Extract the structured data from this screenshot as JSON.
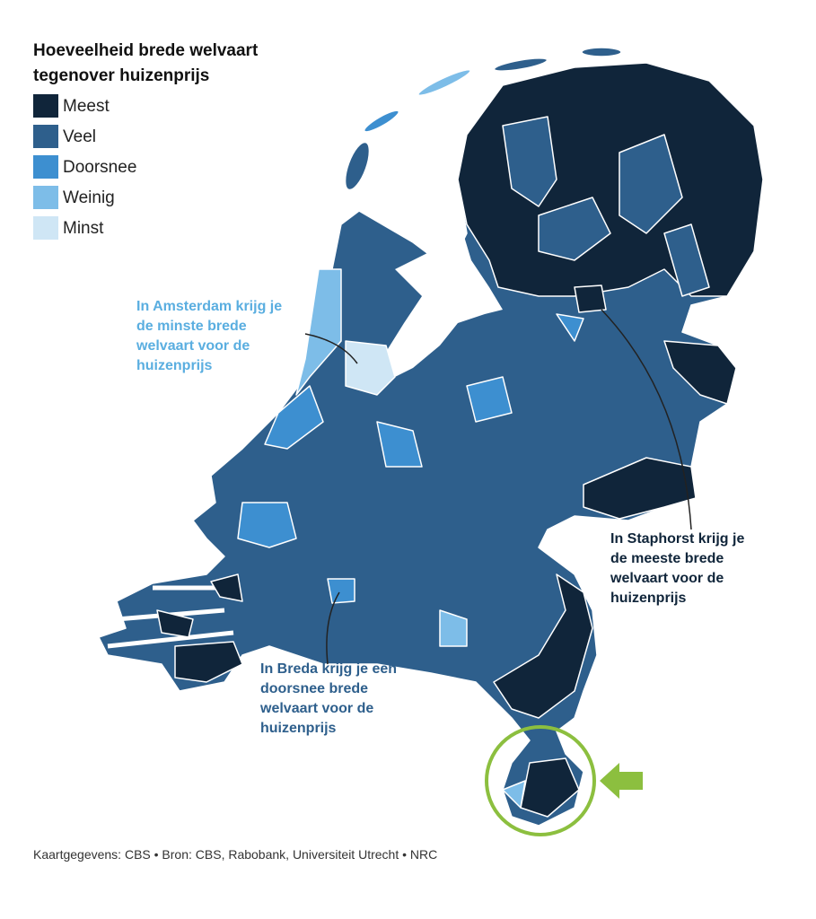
{
  "title": [
    "Hoeveelheid brede welvaart",
    "tegenover huizenprijs"
  ],
  "legend": [
    {
      "name": "Meest",
      "color": "#10253a"
    },
    {
      "name": "Veel",
      "color": "#2e5f8c"
    },
    {
      "name": "Doorsnee",
      "color": "#3d8fd0"
    },
    {
      "name": "Weinig",
      "color": "#7dbde8"
    },
    {
      "name": "Minst",
      "color": "#cfe6f5"
    }
  ],
  "annotations": [
    {
      "lines": [
        "In Amsterdam krijg je",
        "de minste brede",
        "welvaart voor de",
        "huizenprijs"
      ],
      "color": "#5aaee0"
    },
    {
      "lines": [
        "In Staphorst krijg je",
        "de meeste brede",
        "welvaart voor de",
        "huizenprijs"
      ],
      "color": "#10253a"
    },
    {
      "lines": [
        "In Breda krijg je een",
        "doorsnee brede",
        "welvaart voor de",
        "huizenprijs"
      ],
      "color": "#2e5f8c"
    }
  ],
  "source": "Kaartgegevens: CBS • Bron: CBS, Rabobank, Universiteit Utrecht • NRC"
}
